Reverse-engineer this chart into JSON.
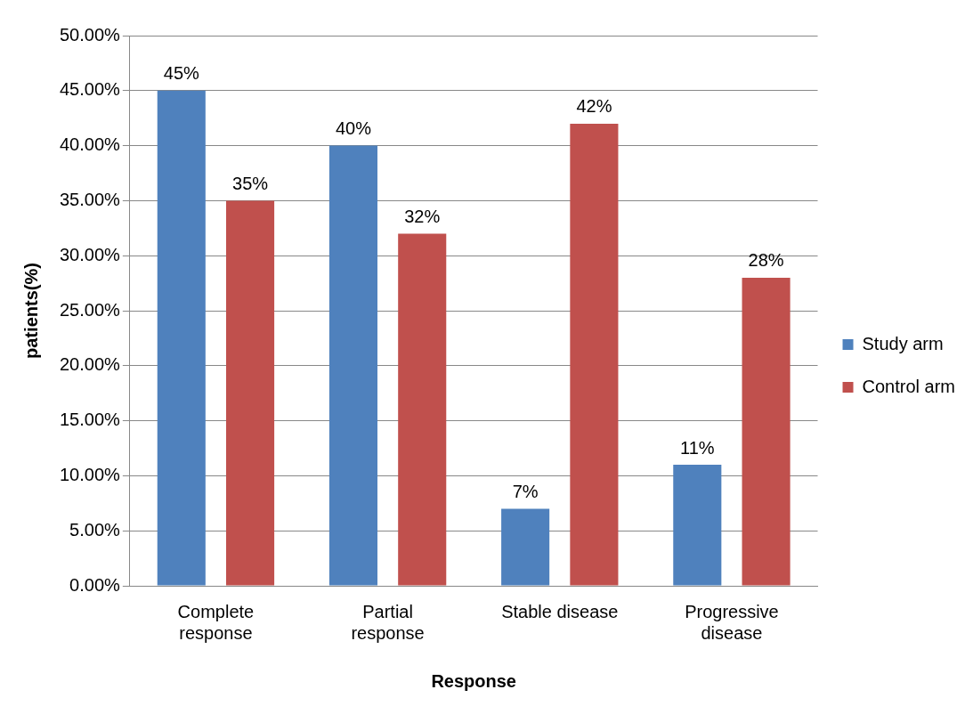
{
  "chart_data": {
    "type": "bar",
    "xlabel": "Response",
    "ylabel": "patients(%)",
    "categories": [
      "Complete response",
      "Partial response",
      "Stable disease",
      "Progressive disease"
    ],
    "series": [
      {
        "name": "Study arm",
        "color": "#4f81bd",
        "values": [
          45,
          40,
          7,
          11
        ],
        "value_labels": [
          "45%",
          "40%",
          "7%",
          "11%"
        ]
      },
      {
        "name": "Control arm",
        "color": "#c0504d",
        "values": [
          35,
          32,
          42,
          28
        ],
        "value_labels": [
          "35%",
          "32%",
          "42%",
          "28%"
        ]
      }
    ],
    "ylim": [
      0,
      50
    ],
    "yticks": [
      {
        "value": 0,
        "label": "0.00%"
      },
      {
        "value": 5,
        "label": "5.00%"
      },
      {
        "value": 10,
        "label": "10.00%"
      },
      {
        "value": 15,
        "label": "15.00%"
      },
      {
        "value": 20,
        "label": "20.00%"
      },
      {
        "value": 25,
        "label": "25.00%"
      },
      {
        "value": 30,
        "label": "30.00%"
      },
      {
        "value": 35,
        "label": "35.00%"
      },
      {
        "value": 40,
        "label": "40.00%"
      },
      {
        "value": 45,
        "label": "45.00%"
      },
      {
        "value": 50,
        "label": "50.00%"
      }
    ],
    "grid": "y",
    "legend": "right"
  }
}
